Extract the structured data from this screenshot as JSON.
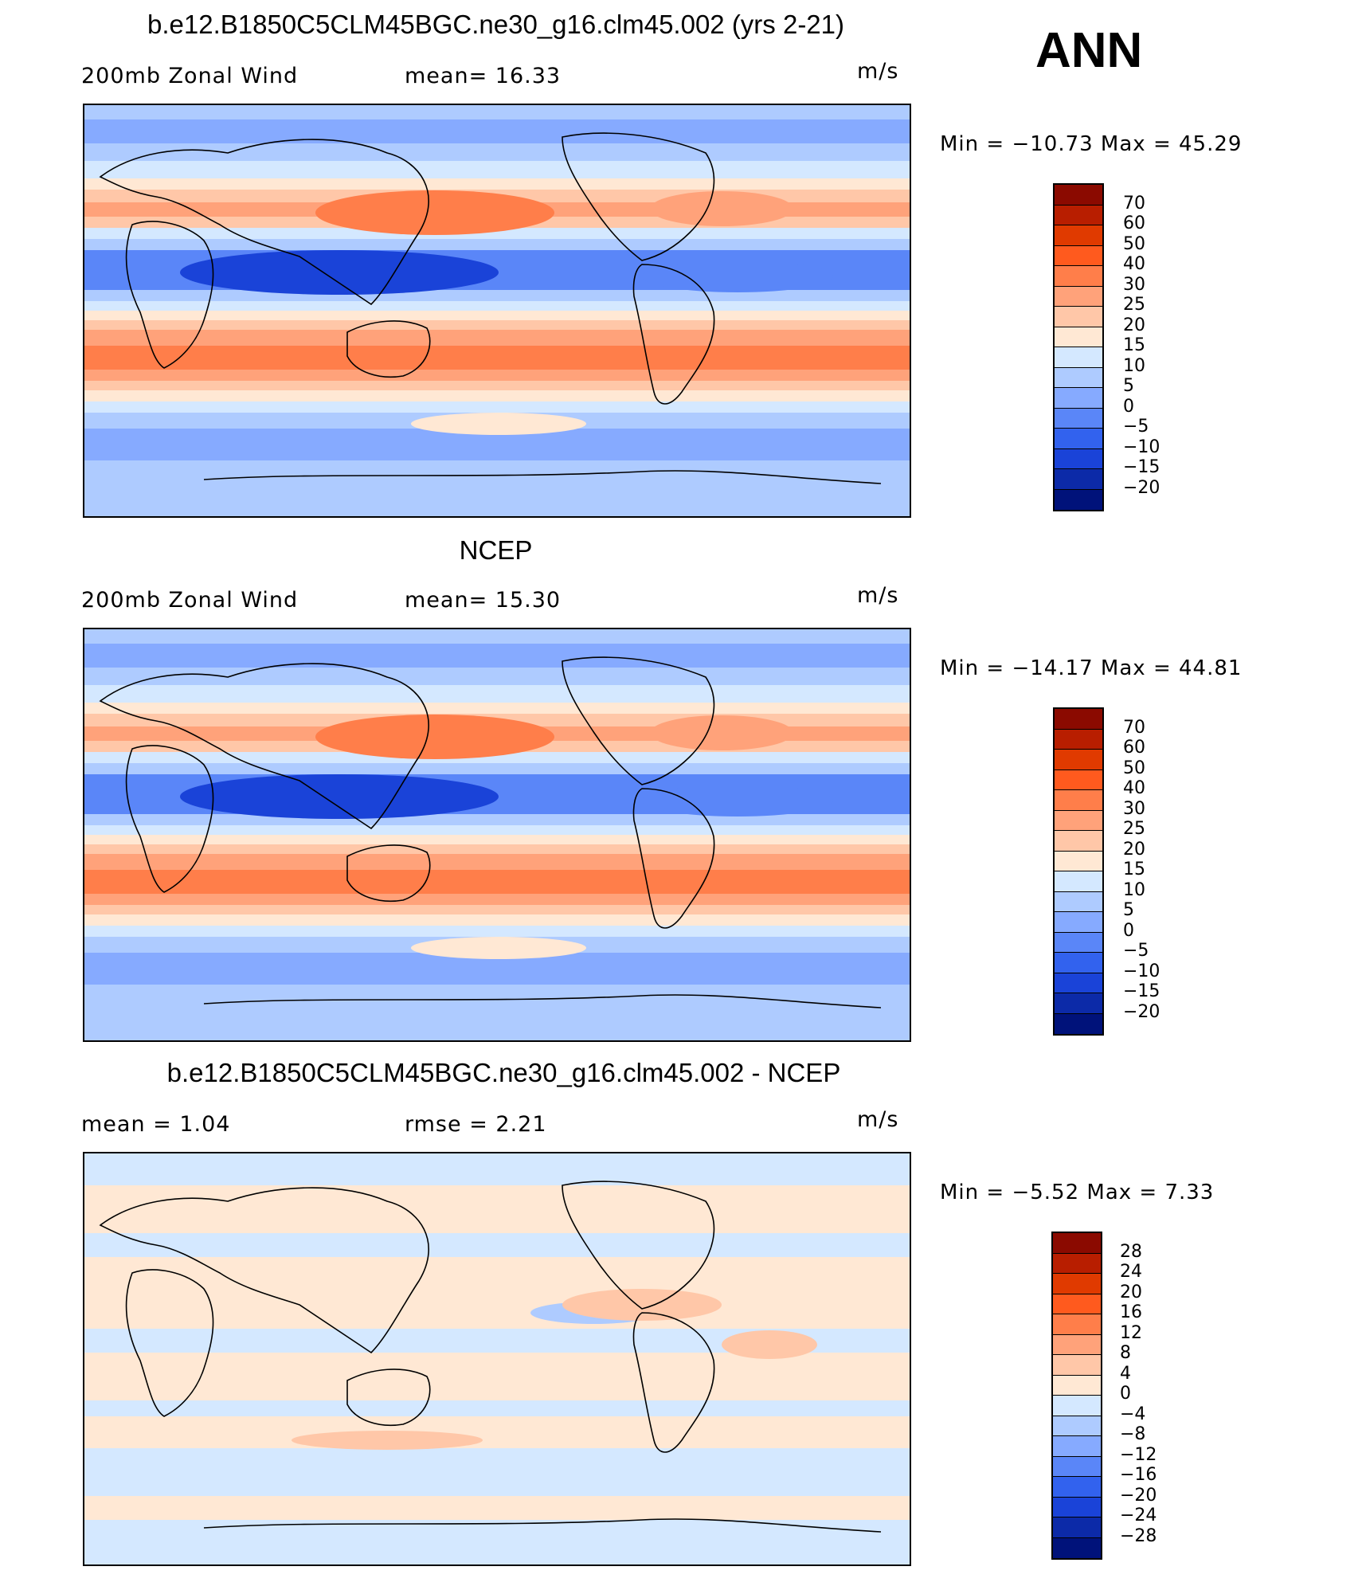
{
  "season_label": "ANN",
  "panels": [
    {
      "title": "b.e12.B1850C5CLM45BGC.ne30_g16.clm45.002 (yrs 2-21)",
      "left_label": "200mb Zonal Wind",
      "stat_label": "mean=   16.33",
      "units": "m/s",
      "minmax": "Min  =  −10.73  Max  =    45.29",
      "kind": "field",
      "colorbar": {
        "labels": [
          "70",
          "60",
          "50",
          "40",
          "30",
          "25",
          "20",
          "15",
          "10",
          "5",
          "0",
          "−5",
          "−10",
          "−15",
          "−20"
        ],
        "colors": [
          "#8b0a00",
          "#b81e00",
          "#e03a00",
          "#ff5a1e",
          "#ff7e4a",
          "#ffa27a",
          "#ffc7a8",
          "#ffe8d4",
          "#d4e8ff",
          "#aecbff",
          "#86aaff",
          "#5a86f8",
          "#3262ee",
          "#1a43d8",
          "#0c2aa8",
          "#00127a"
        ]
      }
    },
    {
      "title": "NCEP",
      "left_label": "200mb Zonal Wind",
      "stat_label": "mean=   15.30",
      "units": "m/s",
      "minmax": "Min  =  −14.17  Max  =    44.81",
      "kind": "field",
      "colorbar": {
        "labels": [
          "70",
          "60",
          "50",
          "40",
          "30",
          "25",
          "20",
          "15",
          "10",
          "5",
          "0",
          "−5",
          "−10",
          "−15",
          "−20"
        ],
        "colors": [
          "#8b0a00",
          "#b81e00",
          "#e03a00",
          "#ff5a1e",
          "#ff7e4a",
          "#ffa27a",
          "#ffc7a8",
          "#ffe8d4",
          "#d4e8ff",
          "#aecbff",
          "#86aaff",
          "#5a86f8",
          "#3262ee",
          "#1a43d8",
          "#0c2aa8",
          "#00127a"
        ]
      }
    },
    {
      "title": "b.e12.B1850C5CLM45BGC.ne30_g16.clm45.002 - NCEP",
      "left_label": "mean  =     1.04",
      "stat_label": "rmse  =     2.21",
      "units": "m/s",
      "minmax": "Min  =    −5.52  Max  =      7.33",
      "kind": "diff",
      "colorbar": {
        "labels": [
          "28",
          "24",
          "20",
          "16",
          "12",
          "8",
          "4",
          "0",
          "−4",
          "−8",
          "−12",
          "−16",
          "−20",
          "−24",
          "−28"
        ],
        "colors": [
          "#8b0a00",
          "#b81e00",
          "#e03a00",
          "#ff5a1e",
          "#ff7e4a",
          "#ffa27a",
          "#ffc7a8",
          "#ffe8d4",
          "#d4e8ff",
          "#aecbff",
          "#86aaff",
          "#5a86f8",
          "#3262ee",
          "#1a43d8",
          "#0c2aa8",
          "#00127a"
        ]
      }
    }
  ],
  "map_colors": {
    "deep_blue": "#1a43d8",
    "blue": "#5a86f8",
    "mid_blue": "#86aaff",
    "light_blue": "#aecbff",
    "pale_blue": "#d4e8ff",
    "pale_orange": "#ffe8d4",
    "light_orange": "#ffc7a8",
    "orange": "#ffa27a",
    "dark_orange": "#ff7e4a",
    "red_orange": "#ff5a1e"
  }
}
